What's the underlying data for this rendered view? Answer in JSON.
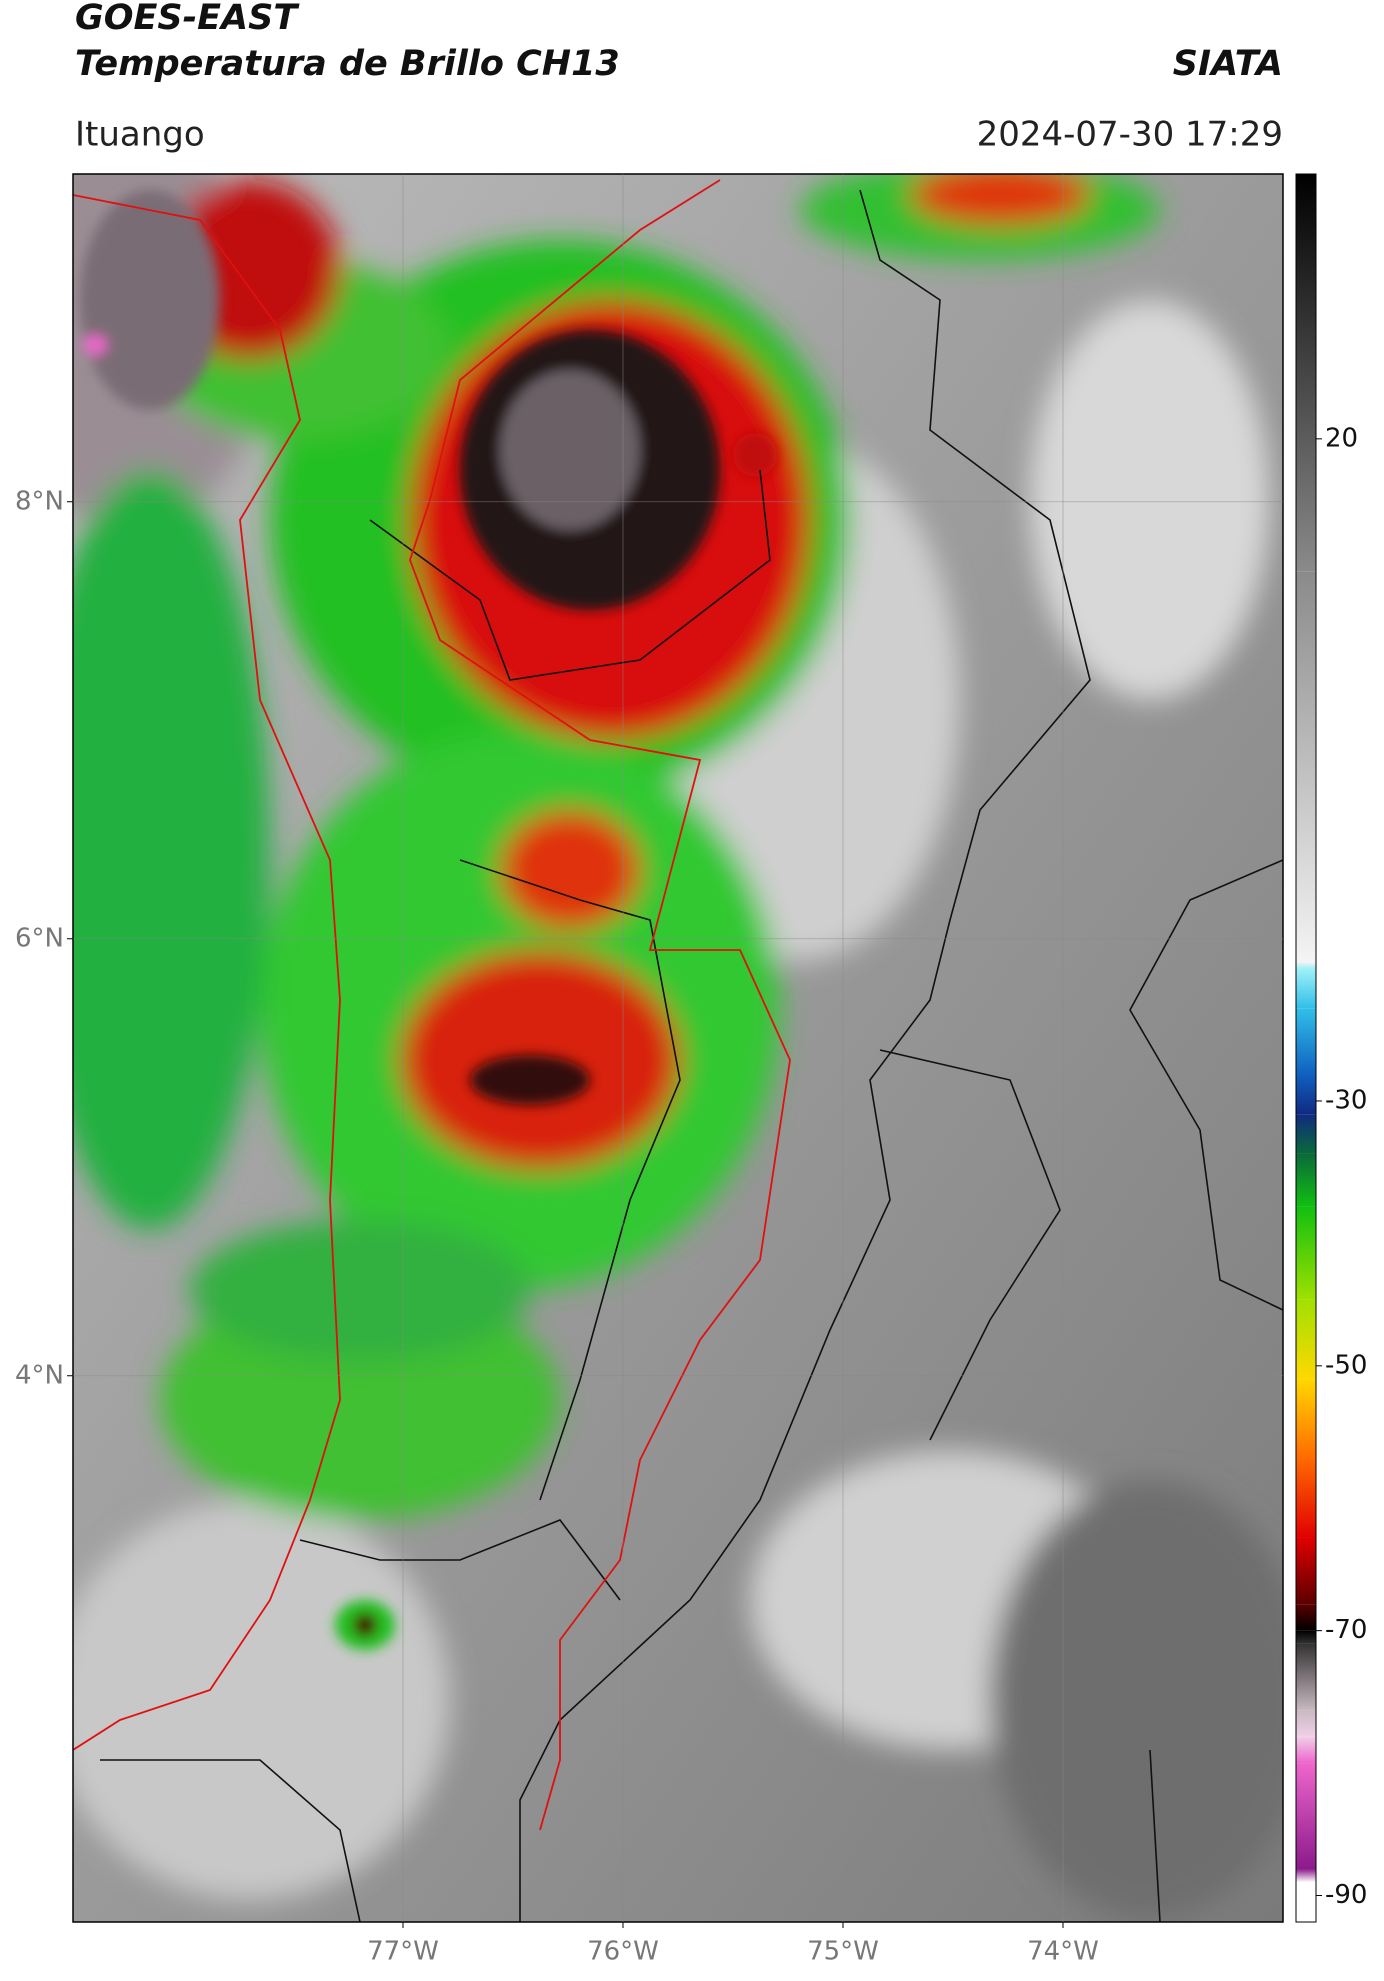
{
  "chart_data": {
    "type": "map",
    "title": "GOES-EAST",
    "subtitle": "Temperatura de Brillo CH13",
    "source": "SIATA",
    "location": "Ituango",
    "datetime": "2024-07-30 17:29",
    "xlim": [
      -78.5,
      -73
    ],
    "ylim": [
      1.5,
      9.5
    ],
    "xticks": [
      {
        "value": -77,
        "label": "77°W"
      },
      {
        "value": -76,
        "label": "76°W"
      },
      {
        "value": -75,
        "label": "75°W"
      },
      {
        "value": -74,
        "label": "74°W"
      }
    ],
    "yticks": [
      {
        "value": 4,
        "label": "4°N"
      },
      {
        "value": 6,
        "label": "6°N"
      },
      {
        "value": 8,
        "label": "8°N"
      }
    ],
    "grid": true,
    "colorbar": {
      "lim": [
        -92,
        40
      ],
      "ticks": [
        -90,
        -70,
        -50,
        -30,
        20
      ],
      "stops": [
        {
          "value": -92,
          "color": "#ffffff"
        },
        {
          "value": -89,
          "color": "#ffffff"
        },
        {
          "value": -88,
          "color": "#8b1a8b"
        },
        {
          "value": -80,
          "color": "#ee66cc"
        },
        {
          "value": -78,
          "color": "#f0d0e8"
        },
        {
          "value": -76,
          "color": "#c8b8c0"
        },
        {
          "value": -71,
          "color": "#333333"
        },
        {
          "value": -70,
          "color": "#000000"
        },
        {
          "value": -68,
          "color": "#5a0000"
        },
        {
          "value": -63,
          "color": "#e00000"
        },
        {
          "value": -57,
          "color": "#ff6a00"
        },
        {
          "value": -51,
          "color": "#ffd800"
        },
        {
          "value": -45,
          "color": "#a0e000"
        },
        {
          "value": -38,
          "color": "#10c010"
        },
        {
          "value": -34,
          "color": "#0a6a3a"
        },
        {
          "value": -31,
          "color": "#102a80"
        },
        {
          "value": -28,
          "color": "#1060c0"
        },
        {
          "value": -23,
          "color": "#30c0e8"
        },
        {
          "value": -20,
          "color": "#a0f0f8"
        },
        {
          "value": -19.5,
          "color": "#f4f4f4"
        },
        {
          "value": 10,
          "color": "#8a8a8a"
        },
        {
          "value": 40,
          "color": "#000000"
        }
      ]
    }
  }
}
